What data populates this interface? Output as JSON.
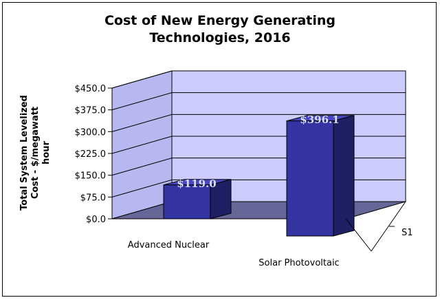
{
  "chart_data": {
    "type": "bar",
    "title_lines": [
      "Cost of New Energy Generating",
      "Technologies, 2016"
    ],
    "ylabel_lines": [
      "Total System Levelized",
      "Cost - $/megawatt",
      "hour"
    ],
    "categories": [
      "Advanced Nuclear",
      "Solar Photovoltaic"
    ],
    "series": [
      {
        "name": "S1",
        "values": [
          119.0,
          396.1
        ],
        "data_labels": [
          "$119.0",
          "$396.1"
        ]
      }
    ],
    "yticks": [
      "$0.0",
      "$75.0",
      "$150.0",
      "$225.0",
      "$300.0",
      "$375.0",
      "$450.0"
    ],
    "ylim": [
      0,
      450
    ],
    "grid": true,
    "legend": "none",
    "colors": {
      "bar_front": "#3333a1",
      "bar_side": "#1f1f63",
      "bar_top": "#4747c2",
      "back_wall": "#ccccff",
      "side_wall": "#b8b8f0",
      "floor": "#666699",
      "data_label": "#d7dcf7"
    }
  }
}
